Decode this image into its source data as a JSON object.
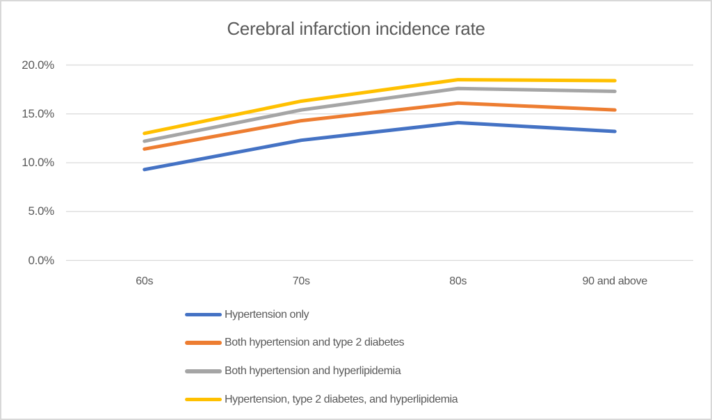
{
  "chart_data": {
    "type": "line",
    "title": "Cerebral infarction incidence rate",
    "categories": [
      "60s",
      "70s",
      "80s",
      "90 and above"
    ],
    "series": [
      {
        "name": "Hypertension only",
        "color": "#4472C4",
        "values": [
          9.3,
          12.3,
          14.1,
          13.2
        ]
      },
      {
        "name": "Both hypertension and type 2 diabetes",
        "color": "#ED7D31",
        "values": [
          11.4,
          14.3,
          16.1,
          15.4
        ]
      },
      {
        "name": "Both hypertension and hyperlipidemia",
        "color": "#A5A5A5",
        "values": [
          12.2,
          15.4,
          17.6,
          17.3
        ]
      },
      {
        "name": "Hypertension, type 2 diabetes, and hyperlipidemia",
        "color": "#FFC000",
        "values": [
          13.0,
          16.3,
          18.5,
          18.4
        ]
      }
    ],
    "ylim": [
      0,
      20
    ],
    "ytick_step": 5,
    "ytick_labels": [
      "0.0%",
      "5.0%",
      "10.0%",
      "15.0%",
      "20.0%"
    ],
    "xlabel": "",
    "ylabel": "",
    "grid": true,
    "legend_position": "bottom-left",
    "style": {
      "text_color": "#595959",
      "gridline_color": "#D9D9D9",
      "background": "#FFFFFF",
      "border_color": "#D8D8D8"
    }
  }
}
